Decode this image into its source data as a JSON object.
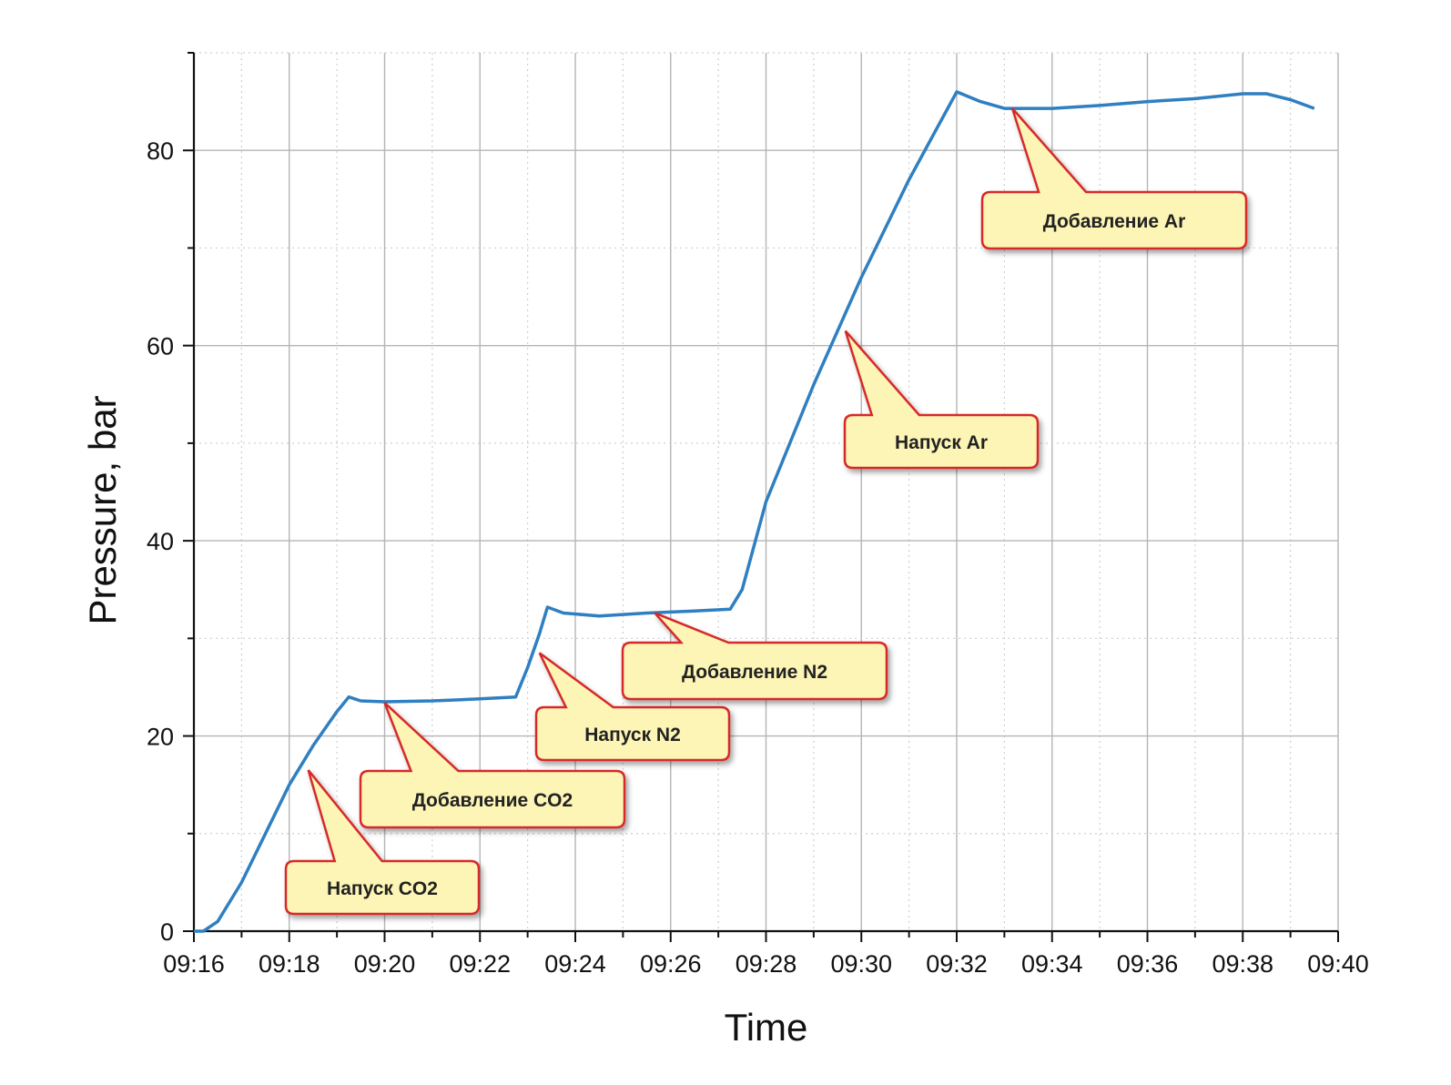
{
  "chart_data": {
    "type": "line",
    "title": "",
    "xlabel": "Time",
    "ylabel": "Pressure, bar",
    "x_ticks": [
      "09:16",
      "09:18",
      "09:20",
      "09:22",
      "09:24",
      "09:26",
      "09:28",
      "09:30",
      "09:32",
      "09:34",
      "09:36",
      "09:38",
      "09:40"
    ],
    "y_ticks": [
      "0",
      "20",
      "40",
      "60",
      "80"
    ],
    "xlim": [
      "09:16",
      "09:40"
    ],
    "ylim": [
      0,
      90
    ],
    "grid": true,
    "line_color": "#2f7fc1",
    "callout_fill": "#fdf5b5",
    "callout_border": "#d62a2a",
    "series": [
      {
        "x": [
          "09:16:00",
          "09:16:12",
          "09:16:30",
          "09:17:00",
          "09:17:30",
          "09:18:00",
          "09:18:30",
          "09:19:00",
          "09:19:15",
          "09:19:30",
          "09:20:00",
          "09:21:00",
          "09:22:00",
          "09:22:45",
          "09:23:00",
          "09:23:15",
          "09:23:25",
          "09:23:45",
          "09:24:30",
          "09:25:30",
          "09:26:30",
          "09:27:15",
          "09:27:30",
          "09:28:00",
          "09:29:00",
          "09:30:00",
          "09:31:00",
          "09:31:30",
          "09:32:00",
          "09:32:30",
          "09:33:00",
          "09:34:00",
          "09:35:00",
          "09:36:00",
          "09:37:00",
          "09:38:00",
          "09:38:30",
          "09:39:00",
          "09:39:30"
        ],
        "y": [
          0,
          0,
          1,
          5,
          10,
          15,
          19,
          22.5,
          24,
          23.6,
          23.5,
          23.6,
          23.8,
          24,
          27,
          30.5,
          33.2,
          32.6,
          32.3,
          32.6,
          32.8,
          33,
          35,
          44,
          56,
          67,
          77,
          81.5,
          86,
          85,
          84.3,
          84.3,
          84.6,
          85,
          85.3,
          85.8,
          85.8,
          85.2,
          84.3
        ]
      }
    ],
    "annotations": [
      {
        "text": "Напуск CO2",
        "x": "09:18:24",
        "y": 16.5
      },
      {
        "text": "Добавление CO2",
        "x": "09:20:00",
        "y": 23.4
      },
      {
        "text": "Напуск N2",
        "x": "09:23:15",
        "y": 28.5
      },
      {
        "text": "Добавление N2",
        "x": "09:25:40",
        "y": 32.6
      },
      {
        "text": "Напуск Ar",
        "x": "09:29:40",
        "y": 61.5
      },
      {
        "text": "Добавление Ar",
        "x": "09:33:10",
        "y": 84.3
      }
    ]
  }
}
